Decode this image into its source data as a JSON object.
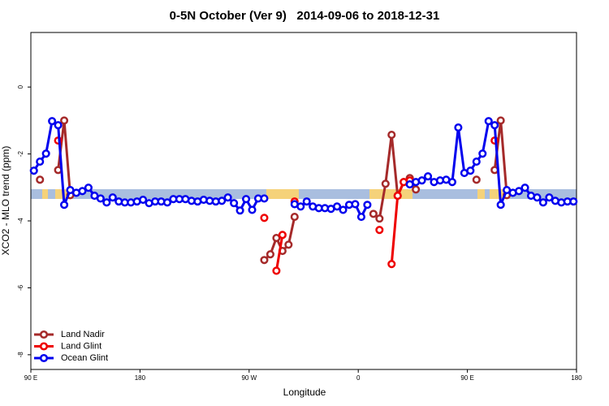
{
  "chart_data": {
    "type": "line",
    "title": "0-5N October (Ver 9)   2014-09-06 to 2018-12-31",
    "xlabel": "Longitude",
    "ylabel": "XCO2 - MLO trend (ppm)",
    "xlim": [
      90,
      540
    ],
    "ylim": [
      -8.44,
      1.63
    ],
    "xticks": [
      {
        "value": 90,
        "label": "90 E"
      },
      180,
      {
        "value": 270,
        "label": "90 W"
      },
      {
        "value": 360,
        "label": "0"
      },
      {
        "value": 450,
        "label": "90 E"
      },
      {
        "value": 540,
        "label": "180"
      }
    ],
    "yticks": [
      0,
      -2,
      -4,
      -6,
      -8
    ],
    "grid": false,
    "legend": "lower left",
    "x": [
      92.5,
      97.5,
      102.5,
      107.5,
      112.5,
      117.5,
      122.5,
      127.5,
      132.5,
      137.5,
      142.5,
      147.5,
      152.5,
      157.5,
      162.5,
      167.5,
      172.5,
      177.5,
      182.5,
      187.5,
      192.5,
      197.5,
      202.5,
      207.5,
      212.5,
      217.5,
      222.5,
      227.5,
      232.5,
      237.5,
      242.5,
      247.5,
      252.5,
      257.5,
      262.5,
      267.5,
      272.5,
      277.5,
      282.5,
      287.5,
      292.5,
      297.5,
      302.5,
      307.5,
      312.5,
      317.5,
      322.5,
      327.5,
      332.5,
      337.5,
      342.5,
      347.5,
      352.5,
      357.5,
      362.5,
      367.5,
      372.5,
      377.5,
      382.5,
      387.5,
      392.5,
      397.5,
      402.5,
      407.5,
      412.5,
      417.5,
      422.5,
      427.5,
      432.5,
      437.5,
      442.5,
      447.5,
      452.5,
      457.5,
      462.5,
      467.5,
      472.5,
      477.5,
      482.5,
      487.5,
      492.5,
      497.5,
      502.5,
      507.5,
      512.5,
      517.5,
      522.5,
      527.5,
      532.5,
      537.5
    ],
    "series": [
      {
        "name": "Land Nadir",
        "color": "#a52a2a",
        "values": [
          null,
          -2.77,
          null,
          null,
          -2.48,
          -1.0,
          -3.23,
          null,
          null,
          null,
          null,
          null,
          null,
          null,
          null,
          null,
          null,
          null,
          null,
          null,
          null,
          null,
          null,
          null,
          null,
          null,
          null,
          null,
          null,
          null,
          null,
          null,
          null,
          null,
          null,
          null,
          null,
          null,
          -5.17,
          -5.0,
          -4.51,
          -4.9,
          -4.71,
          -3.88,
          null,
          null,
          null,
          null,
          null,
          null,
          null,
          null,
          null,
          null,
          null,
          null,
          -3.79,
          -3.93,
          -2.89,
          -1.43,
          -3.25,
          -2.84,
          -2.72,
          -3.06,
          null,
          null,
          null,
          null,
          null,
          null,
          null,
          null,
          null,
          -2.77,
          null,
          null,
          -2.48,
          -1.0,
          -3.23,
          null,
          null,
          null,
          null,
          null,
          null,
          null,
          null,
          null,
          null,
          null
        ]
      },
      {
        "name": "Land Glint",
        "color": "#ee0000",
        "values": [
          null,
          null,
          null,
          null,
          -1.6,
          null,
          null,
          null,
          null,
          null,
          null,
          null,
          null,
          null,
          null,
          null,
          null,
          null,
          null,
          null,
          null,
          null,
          null,
          null,
          null,
          null,
          null,
          null,
          null,
          null,
          null,
          null,
          null,
          null,
          null,
          null,
          null,
          null,
          -3.91,
          null,
          -5.49,
          -4.42,
          null,
          -3.42,
          null,
          null,
          null,
          null,
          null,
          null,
          null,
          null,
          null,
          null,
          null,
          null,
          null,
          -4.27,
          null,
          -5.29,
          -3.25,
          -2.84,
          -2.79,
          null,
          null,
          null,
          null,
          null,
          null,
          null,
          null,
          null,
          null,
          null,
          null,
          null,
          -1.6,
          null,
          null,
          null,
          null,
          null,
          null,
          null,
          null,
          null,
          null,
          null,
          null,
          null
        ]
      },
      {
        "name": "Ocean Glint",
        "color": "#0000ee",
        "values": [
          -2.5,
          -2.23,
          -1.99,
          -1.02,
          -1.14,
          -3.52,
          -3.08,
          -3.16,
          -3.11,
          -3.01,
          -3.25,
          -3.33,
          -3.45,
          -3.3,
          -3.42,
          -3.45,
          -3.45,
          -3.42,
          -3.37,
          -3.47,
          -3.42,
          -3.42,
          -3.45,
          -3.35,
          -3.35,
          -3.35,
          -3.4,
          -3.42,
          -3.37,
          -3.4,
          -3.42,
          -3.4,
          -3.3,
          -3.47,
          -3.69,
          -3.35,
          -3.67,
          -3.33,
          -3.33,
          null,
          null,
          null,
          null,
          -3.5,
          -3.57,
          -3.42,
          -3.57,
          -3.62,
          -3.62,
          -3.64,
          -3.57,
          -3.67,
          -3.52,
          -3.5,
          -3.88,
          -3.52,
          null,
          null,
          null,
          null,
          null,
          null,
          -2.91,
          -2.84,
          -2.79,
          -2.67,
          -2.84,
          -2.79,
          -2.77,
          -2.84,
          -1.21,
          -2.57,
          -2.5,
          -2.23,
          -1.99,
          -1.02,
          -1.14,
          -3.52,
          -3.08,
          -3.16,
          -3.11,
          -3.01,
          -3.25,
          -3.3,
          -3.45,
          -3.3,
          -3.4,
          -3.45,
          -3.42,
          -3.42
        ]
      }
    ]
  }
}
